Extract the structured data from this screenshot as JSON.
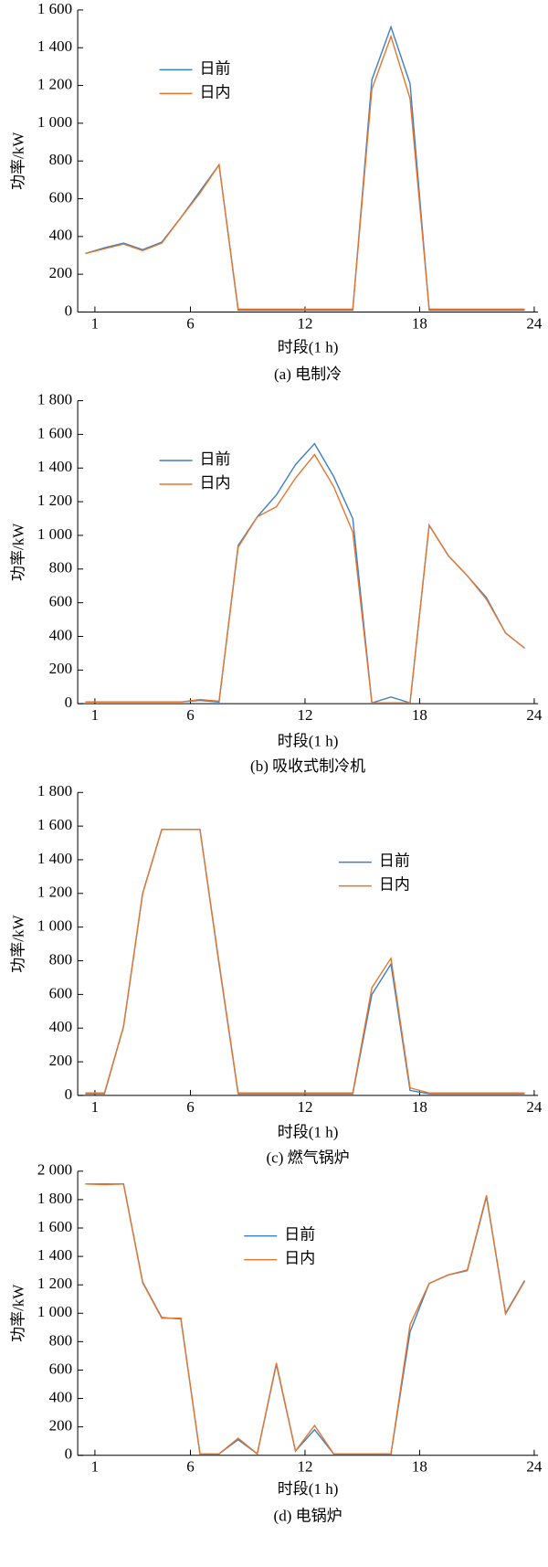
{
  "chart_data": [
    {
      "type": "line",
      "caption": "(a) 电制冷",
      "x_label": "时段(1 h)",
      "y_label": "功率/kW",
      "x": [
        0.5,
        1.5,
        2.5,
        3.5,
        4.5,
        5.5,
        6.5,
        7.5,
        8.5,
        9.5,
        10.5,
        11.5,
        12.5,
        13.5,
        14.5,
        15.5,
        16.5,
        17.5,
        18.5,
        19.5,
        20.5,
        21.5,
        22.5,
        23.5
      ],
      "xlim": [
        0.1,
        24.2
      ],
      "xticks": [
        1,
        6,
        12,
        18,
        24
      ],
      "ylim": [
        0,
        1600
      ],
      "yticks": [
        0,
        200,
        400,
        600,
        800,
        {
          "value": 1000,
          "label": "1 000"
        },
        {
          "value": 1200,
          "label": "1 200"
        },
        {
          "value": 1400,
          "label": "1 400"
        },
        {
          "value": 1600,
          "label": "1 600"
        }
      ],
      "legend": "upper left",
      "series": [
        {
          "name": "日前",
          "color": "#3a7fc8",
          "values": [
            310,
            340,
            365,
            330,
            370,
            500,
            640,
            780,
            10,
            10,
            10,
            10,
            10,
            10,
            10,
            1230,
            1510,
            1210,
            10,
            10,
            10,
            10,
            10,
            10
          ]
        },
        {
          "name": "日内",
          "color": "#e3762e",
          "values": [
            310,
            335,
            360,
            325,
            365,
            500,
            630,
            780,
            15,
            15,
            15,
            15,
            15,
            15,
            15,
            1180,
            1460,
            1130,
            15,
            15,
            15,
            15,
            15,
            15
          ]
        }
      ]
    },
    {
      "type": "line",
      "caption": "(b) 吸收式制冷机",
      "x_label": "时段(1 h)",
      "y_label": "功率/kW",
      "x": [
        0.5,
        1.5,
        2.5,
        3.5,
        4.5,
        5.5,
        6.5,
        7.5,
        8.5,
        9.5,
        10.5,
        11.5,
        12.5,
        13.5,
        14.5,
        15.5,
        16.5,
        17.5,
        18.5,
        19.5,
        20.5,
        21.5,
        22.5,
        23.5
      ],
      "xlim": [
        0.1,
        24.2
      ],
      "xticks": [
        1,
        6,
        12,
        18,
        24
      ],
      "ylim": [
        0,
        1800
      ],
      "yticks": [
        0,
        200,
        400,
        600,
        800,
        {
          "value": 1000,
          "label": "1 000"
        },
        {
          "value": 1200,
          "label": "1 200"
        },
        {
          "value": 1400,
          "label": "1 400"
        },
        {
          "value": 1600,
          "label": "1 600"
        },
        {
          "value": 1800,
          "label": "1 800"
        }
      ],
      "legend": "upper left",
      "series": [
        {
          "name": "日前",
          "color": "#3a7fc8",
          "values": [
            10,
            10,
            10,
            10,
            10,
            10,
            20,
            10,
            940,
            1110,
            1240,
            1420,
            1545,
            1350,
            1100,
            5,
            40,
            5,
            1060,
            880,
            760,
            630,
            420,
            330
          ]
        },
        {
          "name": "日内",
          "color": "#e3762e",
          "values": [
            10,
            10,
            10,
            10,
            10,
            10,
            25,
            15,
            930,
            1110,
            1170,
            1340,
            1480,
            1290,
            1020,
            5,
            5,
            5,
            1060,
            880,
            760,
            620,
            420,
            330
          ]
        }
      ]
    },
    {
      "type": "line",
      "caption": "(c) 燃气锅炉",
      "x_label": "时段(1 h)",
      "y_label": "功率/kW",
      "x": [
        0.5,
        1.5,
        2.5,
        3.5,
        4.5,
        5.5,
        6.5,
        7.5,
        8.5,
        9.5,
        10.5,
        11.5,
        12.5,
        13.5,
        14.5,
        15.5,
        16.5,
        17.5,
        18.5,
        19.5,
        20.5,
        21.5,
        22.5,
        23.5
      ],
      "xlim": [
        0.1,
        24.2
      ],
      "xticks": [
        1,
        6,
        12,
        18,
        24
      ],
      "ylim": [
        0,
        1800
      ],
      "yticks": [
        0,
        200,
        400,
        600,
        800,
        {
          "value": 1000,
          "label": "1 000"
        },
        {
          "value": 1200,
          "label": "1 200"
        },
        {
          "value": 1400,
          "label": "1 400"
        },
        {
          "value": 1600,
          "label": "1 600"
        },
        {
          "value": 1800,
          "label": "1 800"
        }
      ],
      "legend": "center right",
      "series": [
        {
          "name": "日前",
          "color": "#3a7fc8",
          "values": [
            10,
            10,
            410,
            1200,
            1580,
            1580,
            1580,
            780,
            10,
            10,
            10,
            10,
            10,
            10,
            10,
            600,
            780,
            30,
            10,
            10,
            10,
            10,
            10,
            10
          ]
        },
        {
          "name": "日内",
          "color": "#e3762e",
          "values": [
            15,
            15,
            410,
            1200,
            1580,
            1580,
            1580,
            790,
            15,
            15,
            15,
            15,
            15,
            15,
            15,
            640,
            815,
            45,
            15,
            15,
            15,
            15,
            15,
            15
          ]
        }
      ]
    },
    {
      "type": "line",
      "caption": "(d) 电锅炉",
      "x_label": "时段(1 h)",
      "y_label": "功率/kW",
      "x": [
        0.5,
        1.5,
        2.5,
        3.5,
        4.5,
        5.5,
        6.5,
        7.5,
        8.5,
        9.5,
        10.5,
        11.5,
        12.5,
        13.5,
        14.5,
        15.5,
        16.5,
        17.5,
        18.5,
        19.5,
        20.5,
        21.5,
        22.5,
        23.5
      ],
      "xlim": [
        0.1,
        24.2
      ],
      "xticks": [
        1,
        6,
        12,
        18,
        24
      ],
      "ylim": [
        0,
        2000
      ],
      "yticks": [
        0,
        200,
        400,
        600,
        800,
        {
          "value": 1000,
          "label": "1 000"
        },
        {
          "value": 1200,
          "label": "1 200"
        },
        {
          "value": 1400,
          "label": "1 400"
        },
        {
          "value": 1600,
          "label": "1 600"
        },
        {
          "value": 1800,
          "label": "1 800"
        },
        {
          "value": 2000,
          "label": "2 000"
        }
      ],
      "legend": "upper center",
      "series": [
        {
          "name": "日前",
          "color": "#3a7fc8",
          "values": [
            1910,
            1910,
            1910,
            1220,
            970,
            960,
            10,
            10,
            110,
            10,
            640,
            30,
            180,
            10,
            10,
            10,
            10,
            870,
            1210,
            1270,
            1300,
            1820,
            1000,
            1230
          ]
        },
        {
          "name": "日内",
          "color": "#e3762e",
          "values": [
            1910,
            1905,
            1910,
            1215,
            965,
            965,
            10,
            10,
            120,
            10,
            650,
            30,
            210,
            10,
            10,
            10,
            10,
            920,
            1210,
            1270,
            1305,
            1830,
            995,
            1225
          ]
        }
      ]
    }
  ]
}
